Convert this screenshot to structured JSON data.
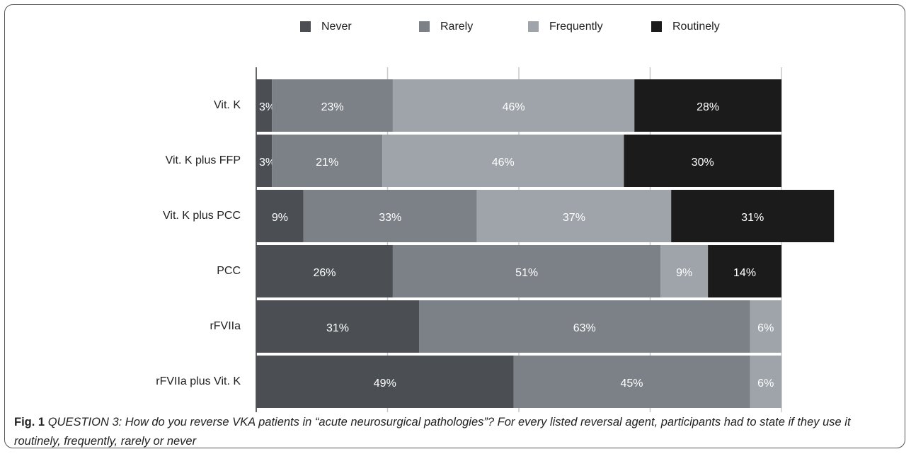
{
  "chart_data": {
    "type": "stacked-barh",
    "categories": [
      "Vit. K",
      "Vit. K plus FFP",
      "Vit. K plus PCC",
      "PCC",
      "rFVIIa",
      "rFVIIa plus Vit. K"
    ],
    "series": [
      {
        "name": "Never",
        "color": "#4b4e53",
        "values": [
          3,
          3,
          9,
          26,
          31,
          49
        ],
        "value_labels": [
          "3%",
          "3%",
          "9%",
          "26%",
          "31%",
          "49%"
        ]
      },
      {
        "name": "Rarely",
        "color": "#7c8087",
        "values": [
          23,
          21,
          33,
          51,
          63,
          45
        ],
        "value_labels": [
          "23%",
          "21%",
          "33%",
          "51%",
          "63%",
          "45%"
        ]
      },
      {
        "name": "Frequently",
        "color": "#9ea4aa",
        "values": [
          46,
          46,
          37,
          9,
          6,
          6
        ],
        "value_labels": [
          "46%",
          "46%",
          "37%",
          "9%",
          "6%",
          "6%"
        ]
      },
      {
        "name": "Routinely",
        "color": "#1b1b1b",
        "values": [
          28,
          30,
          31,
          14,
          null,
          null
        ],
        "value_labels": [
          "28%",
          "30%",
          "31%",
          "14%",
          null,
          null
        ]
      }
    ],
    "xlim": [
      0,
      100
    ],
    "xticks": [
      0,
      25,
      50,
      75,
      100
    ],
    "grid": true,
    "legend": "top"
  },
  "caption": {
    "label": "Fig. 1",
    "text": "QUESTION 3: How do you reverse VKA patients in “acute neurosurgical pathologies”? For every listed reversal agent, participants had to state if they use it routinely, frequently, rarely or never"
  }
}
